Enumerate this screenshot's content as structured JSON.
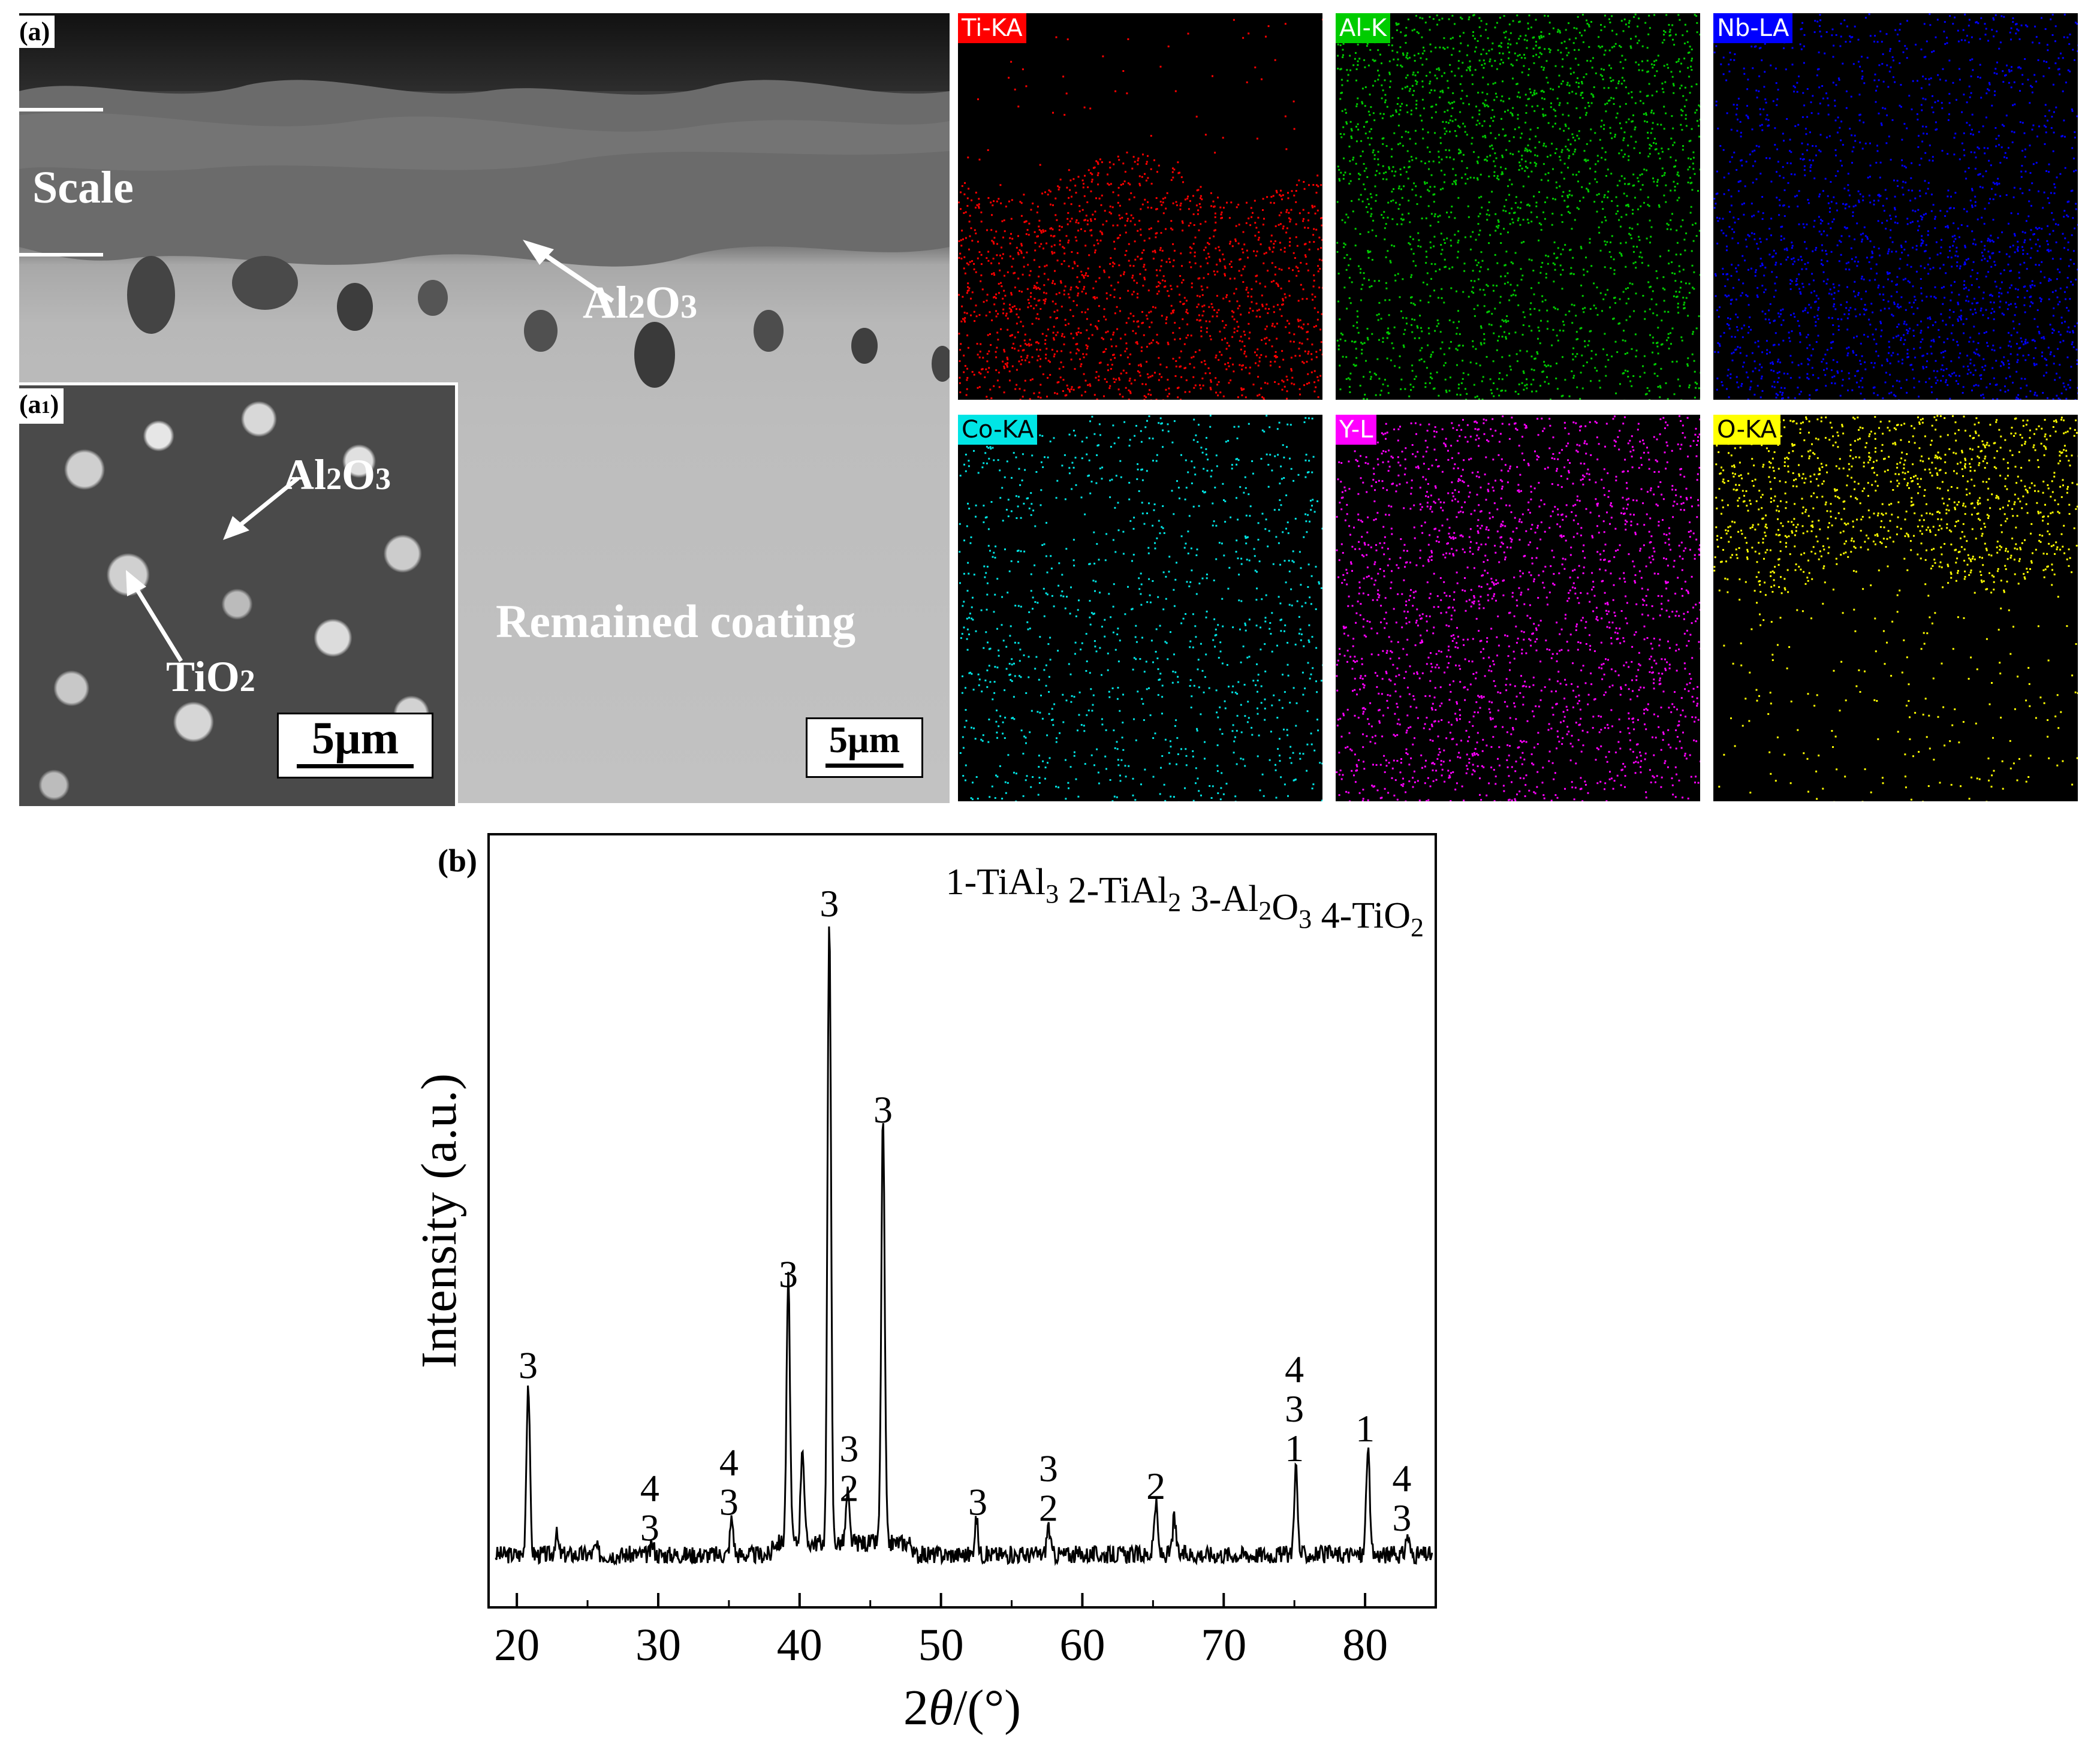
{
  "panel_a": {
    "label": "(a)",
    "scale_label": "Scale",
    "al2o3_label": {
      "main": "Al",
      "sub1": "2",
      "mid": "O",
      "sub2": "3"
    },
    "remained_label": "Remained coating",
    "scalebar": "5µm"
  },
  "panel_a1": {
    "label_main": "(a",
    "label_sub": "1",
    "label_close": ")",
    "al2o3_label": {
      "main": "Al",
      "sub1": "2",
      "mid": "O",
      "sub2": "3"
    },
    "tio2_label": {
      "main": "TiO",
      "sub": "2"
    },
    "scalebar": "5µm"
  },
  "eds_maps": [
    {
      "label": "Ti-KA",
      "color": "#ff0000",
      "tag_text_color": "#ffffff"
    },
    {
      "label": "Al-K",
      "color": "#00cc00",
      "tag_text_color": "#ffffff"
    },
    {
      "label": "Nb-LA",
      "color": "#0000ff",
      "tag_text_color": "#ffffff"
    },
    {
      "label": "Co-KA",
      "color": "#00e5e5",
      "tag_text_color": "#000000"
    },
    {
      "label": "Y-L",
      "color": "#ff00ff",
      "tag_text_color": "#ffffff"
    },
    {
      "label": "O-KA",
      "color": "#ffff00",
      "tag_text_color": "#000000"
    }
  ],
  "panel_b": {
    "label": "(b)",
    "legend": [
      {
        "main": "1-TiAl",
        "sub": "3"
      },
      {
        "main": "2-TiAl",
        "sub": "2"
      },
      {
        "main": "3-Al",
        "sub": "2",
        "main2": "O",
        "sub2": "3"
      },
      {
        "main": "4-TiO",
        "sub": "2"
      }
    ]
  },
  "chart_data": {
    "type": "line",
    "xlabel_prefix": "2",
    "xlabel_symbol": "θ",
    "xlabel_suffix": "/(°)",
    "ylabel": "Intensity (a.u.)",
    "xlim": [
      18,
      85
    ],
    "xticks": [
      20,
      30,
      40,
      50,
      60,
      70,
      80
    ],
    "y_units": "a.u. (no numeric ticks)",
    "baseline_intensity": 10,
    "peaks": [
      {
        "x": 20.8,
        "y": 97
      },
      {
        "x": 22.8,
        "y": 20
      },
      {
        "x": 25.6,
        "y": 14
      },
      {
        "x": 29.6,
        "y": 15
      },
      {
        "x": 35.2,
        "y": 28
      },
      {
        "x": 39.2,
        "y": 143
      },
      {
        "x": 40.2,
        "y": 60
      },
      {
        "x": 42.1,
        "y": 330
      },
      {
        "x": 43.4,
        "y": 35
      },
      {
        "x": 45.9,
        "y": 226
      },
      {
        "x": 52.5,
        "y": 28
      },
      {
        "x": 57.6,
        "y": 25
      },
      {
        "x": 65.2,
        "y": 36
      },
      {
        "x": 66.5,
        "y": 28
      },
      {
        "x": 75.1,
        "y": 55
      },
      {
        "x": 80.2,
        "y": 65
      },
      {
        "x": 83.0,
        "y": 20
      }
    ],
    "annotations": [
      {
        "x": 20.8,
        "labels": [
          "3"
        ]
      },
      {
        "x": 29.4,
        "labels": [
          "4",
          "3"
        ]
      },
      {
        "x": 35.0,
        "labels": [
          "4",
          "3"
        ]
      },
      {
        "x": 39.2,
        "labels": [
          "3"
        ]
      },
      {
        "x": 42.1,
        "labels": [
          "3"
        ]
      },
      {
        "x": 43.5,
        "labels": [
          "3",
          "2"
        ]
      },
      {
        "x": 45.9,
        "labels": [
          "3"
        ]
      },
      {
        "x": 52.6,
        "labels": [
          "3"
        ]
      },
      {
        "x": 57.6,
        "labels": [
          "3",
          "2"
        ]
      },
      {
        "x": 65.2,
        "labels": [
          "2"
        ]
      },
      {
        "x": 75.0,
        "labels": [
          "4",
          "3",
          "1"
        ]
      },
      {
        "x": 80.0,
        "labels": [
          "1"
        ]
      },
      {
        "x": 82.6,
        "labels": [
          "4",
          "3"
        ]
      }
    ]
  }
}
